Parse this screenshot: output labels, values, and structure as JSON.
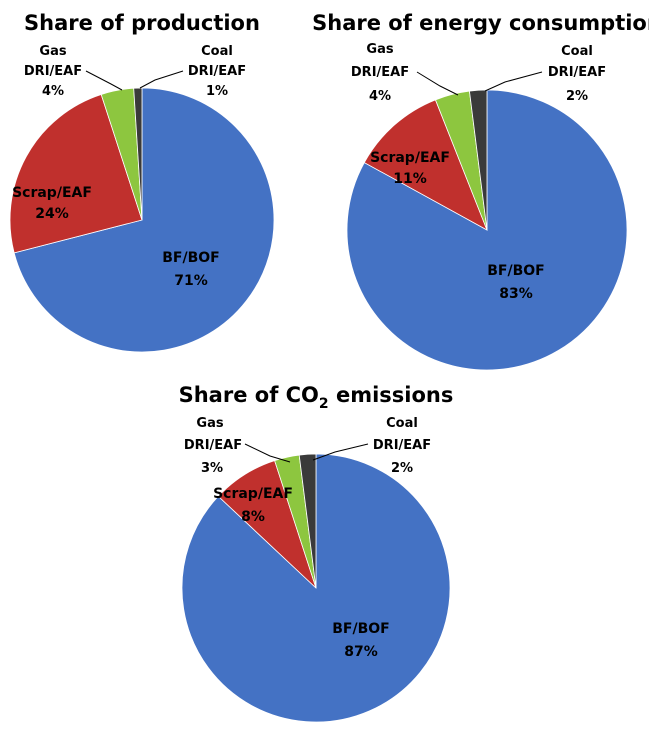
{
  "colors": {
    "BF/BOF": "#4472C4",
    "Scrap/EAF": "#C0302D",
    "Gas DRI/EAF": "#8DC63F",
    "Coal DRI/EAF": "#3A3A3A"
  },
  "chart_data": [
    {
      "type": "pie",
      "title": "Share of production",
      "slices": [
        {
          "label": "BF/BOF",
          "value": 71,
          "text": "71%"
        },
        {
          "label": "Scrap/EAF",
          "value": 24,
          "text": "24%"
        },
        {
          "label": "Gas DRI/EAF",
          "value": 4,
          "text": "4%"
        },
        {
          "label": "Coal DRI/EAF",
          "value": 1,
          "text": "1%"
        }
      ]
    },
    {
      "type": "pie",
      "title": "Share of energy consumption",
      "slices": [
        {
          "label": "BF/BOF",
          "value": 83,
          "text": "83%"
        },
        {
          "label": "Scrap/EAF",
          "value": 11,
          "text": "11%"
        },
        {
          "label": "Gas DRI/EAF",
          "value": 4,
          "text": "4%"
        },
        {
          "label": "Coal DRI/EAF",
          "value": 2,
          "text": "2%"
        }
      ]
    },
    {
      "type": "pie",
      "title": "Share of CO2 emissions",
      "title_parts": {
        "before": "Share of CO",
        "sub": "2",
        "after": " emissions"
      },
      "slices": [
        {
          "label": "BF/BOF",
          "value": 87,
          "text": "87%"
        },
        {
          "label": "Scrap/EAF",
          "value": 8,
          "text": "8%"
        },
        {
          "label": "Gas DRI/EAF",
          "value": 3,
          "text": "3%"
        },
        {
          "label": "Coal DRI/EAF",
          "value": 2,
          "text": "2%"
        }
      ]
    }
  ]
}
